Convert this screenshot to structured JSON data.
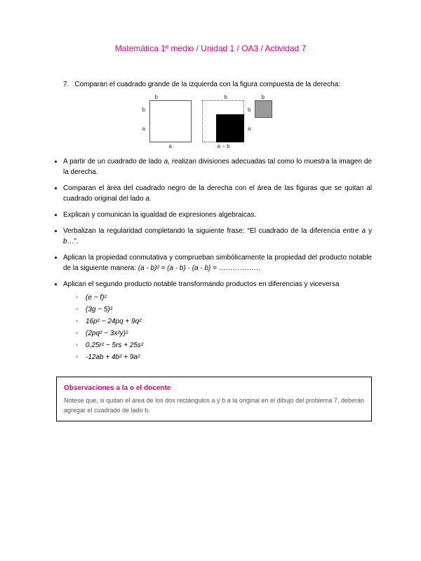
{
  "title": "Matemática 1º medio / Unidad 1 / OA3 / Actividad 7",
  "problem": {
    "number": "7.",
    "text": "Comparan el cuadrado grande de la izquierda con la figura compuesta de la derecha:"
  },
  "figure": {
    "left_size": 60,
    "mid_size": 60,
    "black_size": 40,
    "gray_size": 25,
    "labels": {
      "a": "a",
      "b": "b",
      "amb": "a − b"
    }
  },
  "bullets": [
    "A partir de un cuadrado de lado <span class='italic'>a</span>, realizan divisiones adecuadas tal como lo muestra la imagen de la derecha.",
    "Comparan el área del cuadrado negro de la derecha con el área de las figuras que se quitan al cuadrado original del lado <span class='italic'>a</span>.",
    "Explican y comunican la igualdad de expresiones algebraicas.",
    "Verbalizan la regularidad completando la siguiente frase: “El cuadrado de la diferencia entre <span class='italic'>a</span> y <span class='italic'>b</span>…”.",
    "Aplican la propiedad conmutativa y comprueban simbólicamente la propiedad del producto notable de la siguiente manera: <span class='italic'>(a - b)² = (a - b) · (a - b) = ………………</span>",
    "Aplican el segundo producto notable transformando productos en diferencias y viceversa"
  ],
  "sublist": [
    "(e − f)²",
    "(3g − 5)²",
    "16p² − 24pq + 9q²",
    "(2pq² − 3x²y)²",
    "0,25r² − 5rs + 25s²",
    "-12ab + 4b² + 9a²"
  ],
  "obs": {
    "title": "Observaciones a la o el docente",
    "body": "Nótese que, si quitan el área de los dos rectángulos a y b a la original en el dibujo del problema 7, deberán agregar el cuadrado de lado b."
  },
  "colors": {
    "accent": "#e6007e",
    "text": "#000000",
    "gray": "#9a9a9a"
  }
}
